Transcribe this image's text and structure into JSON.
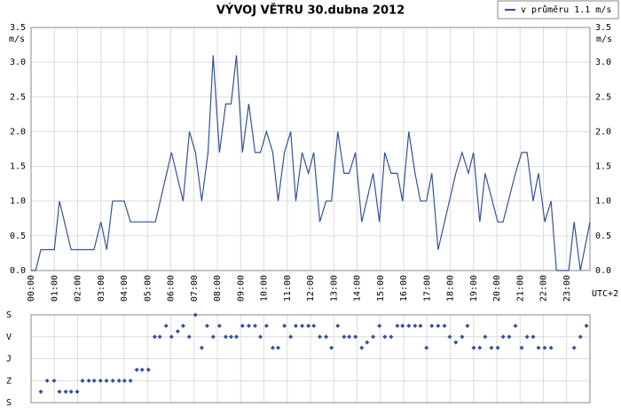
{
  "chart_data": [
    {
      "type": "line",
      "title": "VÝVOJ VĚTRU  30.dubna 2012",
      "y_label": "m/s",
      "x_note": "UTC+2",
      "legend": "top-right",
      "grid": true,
      "x": [
        0,
        0.2,
        0.42,
        1.0,
        1.22,
        1.72,
        2.7,
        3.0,
        3.25,
        3.5,
        4.0,
        4.27,
        5.34,
        6.03,
        6.53,
        6.8,
        7.06,
        7.33,
        7.6,
        7.82,
        8.09,
        8.36,
        8.59,
        8.82,
        9.08,
        9.35,
        9.62,
        9.85,
        10.11,
        10.38,
        10.61,
        10.88,
        11.15,
        11.37,
        11.64,
        11.91,
        12.14,
        12.4,
        12.67,
        12.9,
        13.17,
        13.44,
        13.66,
        13.93,
        14.2,
        14.69,
        14.96,
        15.19,
        15.46,
        15.73,
        15.95,
        16.22,
        16.49,
        16.72,
        16.98,
        17.21,
        17.48,
        18.24,
        18.51,
        18.78,
        19.0,
        19.27,
        19.5,
        20.04,
        20.27,
        20.8,
        21.07,
        21.3,
        21.56,
        21.79,
        22.06,
        22.33,
        22.56,
        23.09,
        23.32,
        23.59,
        24
      ],
      "series": [
        {
          "name": "v průměru 1.1 m/s",
          "color": "#34529a",
          "values": [
            0,
            0,
            0.3,
            0.3,
            1.0,
            0.3,
            0.3,
            0.7,
            0.3,
            1.0,
            1.0,
            0.7,
            0.7,
            1.7,
            1.0,
            2.0,
            1.7,
            1.0,
            1.7,
            3.1,
            1.7,
            2.4,
            2.4,
            3.1,
            1.7,
            2.4,
            1.7,
            1.7,
            2.0,
            1.7,
            1.0,
            1.7,
            2.0,
            1.0,
            1.7,
            1.4,
            1.7,
            0.7,
            1.0,
            1.0,
            2.0,
            1.4,
            1.4,
            1.7,
            0.7,
            1.4,
            0.7,
            1.7,
            1.4,
            1.4,
            1.0,
            2.0,
            1.4,
            1.0,
            1.0,
            1.4,
            0.3,
            1.4,
            1.7,
            1.4,
            1.7,
            0.7,
            1.4,
            0.7,
            0.7,
            1.4,
            1.7,
            1.7,
            1.0,
            1.4,
            0.7,
            1.0,
            0,
            0,
            0.7,
            0,
            0.7
          ]
        }
      ],
      "xlim": [
        0,
        24
      ],
      "xticks": [
        {
          "value": 0,
          "label": "00:00"
        },
        {
          "value": 1,
          "label": "01:00"
        },
        {
          "value": 2,
          "label": "02:00"
        },
        {
          "value": 3,
          "label": "03:00"
        },
        {
          "value": 4,
          "label": "04:00"
        },
        {
          "value": 5,
          "label": "05:00"
        },
        {
          "value": 6,
          "label": "06:00"
        },
        {
          "value": 7,
          "label": "07:00"
        },
        {
          "value": 8,
          "label": "08:00"
        },
        {
          "value": 9,
          "label": "09:00"
        },
        {
          "value": 10,
          "label": "10:00"
        },
        {
          "value": 11,
          "label": "11:00"
        },
        {
          "value": 12,
          "label": "12:00"
        },
        {
          "value": 13,
          "label": "13:00"
        },
        {
          "value": 14,
          "label": "14:00"
        },
        {
          "value": 15,
          "label": "15:00"
        },
        {
          "value": 16,
          "label": "16:00"
        },
        {
          "value": 17,
          "label": "17:00"
        },
        {
          "value": 18,
          "label": "18:00"
        },
        {
          "value": 19,
          "label": "19:00"
        },
        {
          "value": 20,
          "label": "20:00"
        },
        {
          "value": 21,
          "label": "21:00"
        },
        {
          "value": 22,
          "label": "22:00"
        },
        {
          "value": 23,
          "label": "23:00"
        }
      ],
      "ylim": [
        0,
        3.5
      ],
      "yticks": [
        {
          "value": 0,
          "label": "0.0"
        },
        0.5,
        {
          "value": 1,
          "label": "1.0"
        },
        1.5,
        {
          "value": 2,
          "label": "2.0"
        },
        2.5,
        {
          "value": 3,
          "label": "3.0"
        },
        3.5
      ]
    },
    {
      "type": "scatter",
      "color": "#34529a",
      "grid": true,
      "xlim": [
        0,
        24
      ],
      "x": [
        0.42,
        0.69,
        0.99,
        1.22,
        1.49,
        1.72,
        1.98,
        2.21,
        2.48,
        2.71,
        2.98,
        3.24,
        3.51,
        3.78,
        4.01,
        4.27,
        4.54,
        4.77,
        5.04,
        5.31,
        5.53,
        5.8,
        6.03,
        6.3,
        6.53,
        6.79,
        7.06,
        7.33,
        7.56,
        7.82,
        8.09,
        8.36,
        8.59,
        8.82,
        9.08,
        9.35,
        9.62,
        9.85,
        10.11,
        10.38,
        10.61,
        10.88,
        11.15,
        11.37,
        11.64,
        11.91,
        12.14,
        12.4,
        12.67,
        12.9,
        13.17,
        13.44,
        13.66,
        13.93,
        14.2,
        14.43,
        14.69,
        14.96,
        15.19,
        15.46,
        15.73,
        15.95,
        16.22,
        16.49,
        16.72,
        16.98,
        17.21,
        17.48,
        17.75,
        17.98,
        18.24,
        18.51,
        18.74,
        19.01,
        19.27,
        19.5,
        19.77,
        20.04,
        20.27,
        20.53,
        20.8,
        21.07,
        21.3,
        21.56,
        21.79,
        22.06,
        22.33,
        23.32,
        23.59,
        23.85
      ],
      "values": [
        315,
        270,
        270,
        315,
        315,
        315,
        315,
        270,
        270,
        270,
        270,
        270,
        270,
        270,
        270,
        270,
        225,
        225,
        225,
        90,
        90,
        45,
        90,
        67.5,
        45,
        90,
        0,
        135,
        45,
        90,
        45,
        90,
        90,
        90,
        45,
        45,
        45,
        90,
        45,
        135,
        135,
        45,
        90,
        45,
        45,
        45,
        45,
        90,
        90,
        135,
        45,
        90,
        90,
        90,
        135,
        112.5,
        90,
        45,
        90,
        90,
        45,
        45,
        45,
        45,
        45,
        135,
        45,
        45,
        45,
        90,
        112.5,
        90,
        45,
        135,
        135,
        90,
        135,
        135,
        90,
        90,
        45,
        135,
        90,
        90,
        135,
        135,
        135,
        135,
        90,
        45
      ],
      "ylim": [
        360,
        0
      ],
      "yticks": [
        {
          "value": 0,
          "label": "S"
        },
        {
          "value": 90,
          "label": "V"
        },
        {
          "value": 180,
          "label": "J"
        },
        {
          "value": 270,
          "label": "Z"
        },
        {
          "value": 360,
          "label": "S"
        }
      ]
    }
  ]
}
